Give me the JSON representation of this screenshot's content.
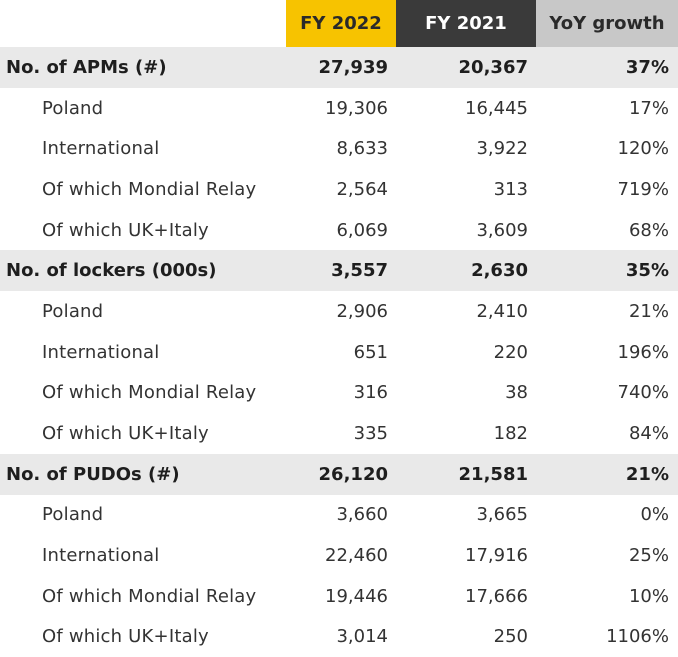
{
  "header": {
    "fy2022": "FY 2022",
    "fy2021": "FY 2021",
    "yoy": "YoY growth",
    "colors": {
      "fy2022": "#f7c300",
      "fy2021": "#3a3a3a",
      "yoy": "#c8c8c8",
      "section_band": "#e9e9e9"
    }
  },
  "rows": [
    {
      "label": "No. of APMs (#)",
      "fy2022": "27,939",
      "fy2021": "20,367",
      "yoy": "37%"
    },
    {
      "label": "Poland",
      "fy2022": "19,306",
      "fy2021": "16,445",
      "yoy": "17%"
    },
    {
      "label": "International",
      "fy2022": "8,633",
      "fy2021": "3,922",
      "yoy": "120%"
    },
    {
      "label": "Of which Mondial Relay",
      "fy2022": "2,564",
      "fy2021": "313",
      "yoy": "719%"
    },
    {
      "label": "Of which UK+Italy",
      "fy2022": "6,069",
      "fy2021": "3,609",
      "yoy": "68%"
    },
    {
      "label": "No. of lockers (000s)",
      "fy2022": "3,557",
      "fy2021": "2,630",
      "yoy": "35%"
    },
    {
      "label": "Poland",
      "fy2022": "2,906",
      "fy2021": "2,410",
      "yoy": "21%"
    },
    {
      "label": "International",
      "fy2022": "651",
      "fy2021": "220",
      "yoy": "196%"
    },
    {
      "label": "Of which Mondial Relay",
      "fy2022": "316",
      "fy2021": "38",
      "yoy": "740%"
    },
    {
      "label": "Of which UK+Italy",
      "fy2022": "335",
      "fy2021": "182",
      "yoy": "84%"
    },
    {
      "label": "No. of PUDOs (#)",
      "fy2022": "26,120",
      "fy2021": "21,581",
      "yoy": "21%"
    },
    {
      "label": "Poland",
      "fy2022": "3,660",
      "fy2021": "3,665",
      "yoy": "0%"
    },
    {
      "label": "International",
      "fy2022": "22,460",
      "fy2021": "17,916",
      "yoy": "25%"
    },
    {
      "label": "Of which Mondial Relay",
      "fy2022": "19,446",
      "fy2021": "17,666",
      "yoy": "10%"
    },
    {
      "label": "Of which UK+Italy",
      "fy2022": "3,014",
      "fy2021": "250",
      "yoy": "1106%"
    }
  ]
}
